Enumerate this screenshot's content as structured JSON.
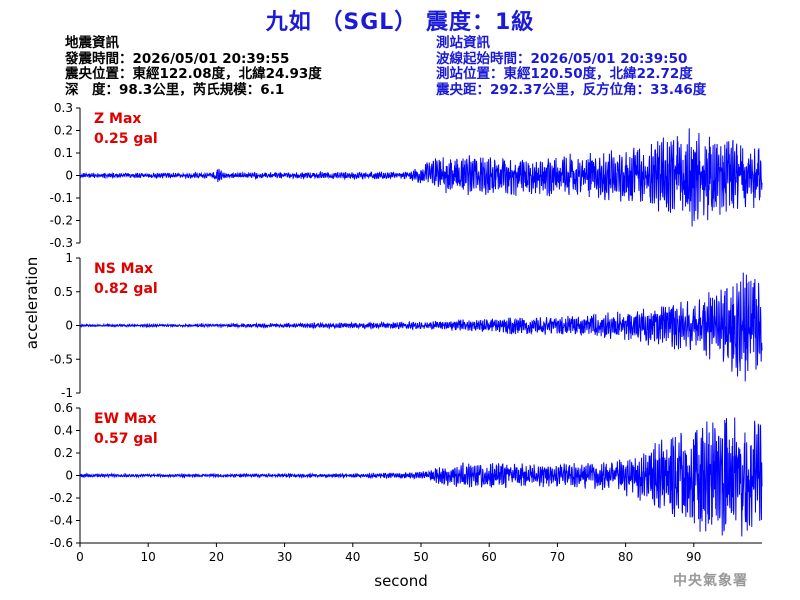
{
  "title": "九如 （SGL） 震度：1級",
  "quake_info": {
    "heading": "地震資訊",
    "time": "發震時間：2026/05/01 20:39:55",
    "epicenter": "震央位置：東經122.08度，北緯24.93度",
    "depth_mag": "深　度：98.3公里，芮氏規模：6.1"
  },
  "station_info": {
    "heading": "測站資訊",
    "wave_start": "波線起始時間：2026/05/01 20:39:50",
    "location": "測站位置：東經120.50度，北緯22.72度",
    "distance": "震央距：292.37公里，反方位角：33.46度"
  },
  "footer": "中央氣象署",
  "colors": {
    "title": "#1a1ad8",
    "trace": "#0000ff",
    "max_label": "#e00000"
  },
  "chart_data": {
    "type": "line",
    "xlabel": "second",
    "ylabel": "acceleration",
    "xlim": [
      0,
      100
    ],
    "x_ticks": [
      0,
      10,
      20,
      30,
      40,
      50,
      60,
      70,
      80,
      90
    ],
    "x_tick_labels": [
      "0",
      "10",
      "20",
      "30",
      "40",
      "50",
      "60",
      "70",
      "80",
      "90"
    ],
    "grid": false,
    "panels": [
      {
        "name": "Z",
        "max_label_line1": "Z Max",
        "max_label_line2": "0.25 gal",
        "max_value": 0.25,
        "ylim": [
          -0.3,
          0.3
        ],
        "y_ticks": [
          0.3,
          0.2,
          0.1,
          0,
          -0.1,
          -0.2,
          -0.3
        ],
        "y_tick_labels": [
          "0.3",
          "0.2",
          "0.1",
          "0",
          "-0.1",
          "-0.2",
          "-0.3"
        ],
        "envelope": [
          [
            0,
            0.01
          ],
          [
            19.5,
            0.012
          ],
          [
            20.2,
            0.04
          ],
          [
            21,
            0.012
          ],
          [
            28,
            0.012
          ],
          [
            42,
            0.015
          ],
          [
            48,
            0.015
          ],
          [
            50,
            0.04
          ],
          [
            52,
            0.07
          ],
          [
            56,
            0.08
          ],
          [
            60,
            0.09
          ],
          [
            66,
            0.08
          ],
          [
            72,
            0.09
          ],
          [
            78,
            0.1
          ],
          [
            82,
            0.11
          ],
          [
            86,
            0.16
          ],
          [
            90,
            0.2
          ],
          [
            95,
            0.15
          ],
          [
            100,
            0.12
          ]
        ]
      },
      {
        "name": "NS",
        "max_label_line1": "NS Max",
        "max_label_line2": "0.82 gal",
        "max_value": 0.82,
        "ylim": [
          -1,
          1
        ],
        "y_ticks": [
          1,
          0.5,
          0,
          -0.5,
          -1
        ],
        "y_tick_labels": [
          "1",
          "0.5",
          "0",
          "-0.5",
          "-1"
        ],
        "envelope": [
          [
            0,
            0.015
          ],
          [
            20,
            0.02
          ],
          [
            30,
            0.03
          ],
          [
            40,
            0.04
          ],
          [
            50,
            0.05
          ],
          [
            55,
            0.08
          ],
          [
            60,
            0.1
          ],
          [
            65,
            0.12
          ],
          [
            70,
            0.12
          ],
          [
            75,
            0.15
          ],
          [
            80,
            0.2
          ],
          [
            85,
            0.3
          ],
          [
            90,
            0.35
          ],
          [
            95,
            0.55
          ],
          [
            98,
            0.82
          ],
          [
            100,
            0.5
          ]
        ]
      },
      {
        "name": "EW",
        "max_label_line1": "EW Max",
        "max_label_line2": "0.57 gal",
        "max_value": 0.57,
        "ylim": [
          -0.6,
          0.6
        ],
        "y_ticks": [
          0.6,
          0.4,
          0.2,
          0,
          -0.2,
          -0.4,
          -0.6
        ],
        "y_tick_labels": [
          "0.6",
          "0.4",
          "0.2",
          "0",
          "-0.2",
          "-0.4",
          "-0.6"
        ],
        "envelope": [
          [
            0,
            0.012
          ],
          [
            20,
            0.012
          ],
          [
            40,
            0.015
          ],
          [
            50,
            0.03
          ],
          [
            52,
            0.06
          ],
          [
            56,
            0.1
          ],
          [
            62,
            0.1
          ],
          [
            70,
            0.09
          ],
          [
            78,
            0.12
          ],
          [
            82,
            0.2
          ],
          [
            86,
            0.3
          ],
          [
            90,
            0.45
          ],
          [
            95,
            0.5
          ],
          [
            100,
            0.45
          ]
        ]
      }
    ]
  }
}
